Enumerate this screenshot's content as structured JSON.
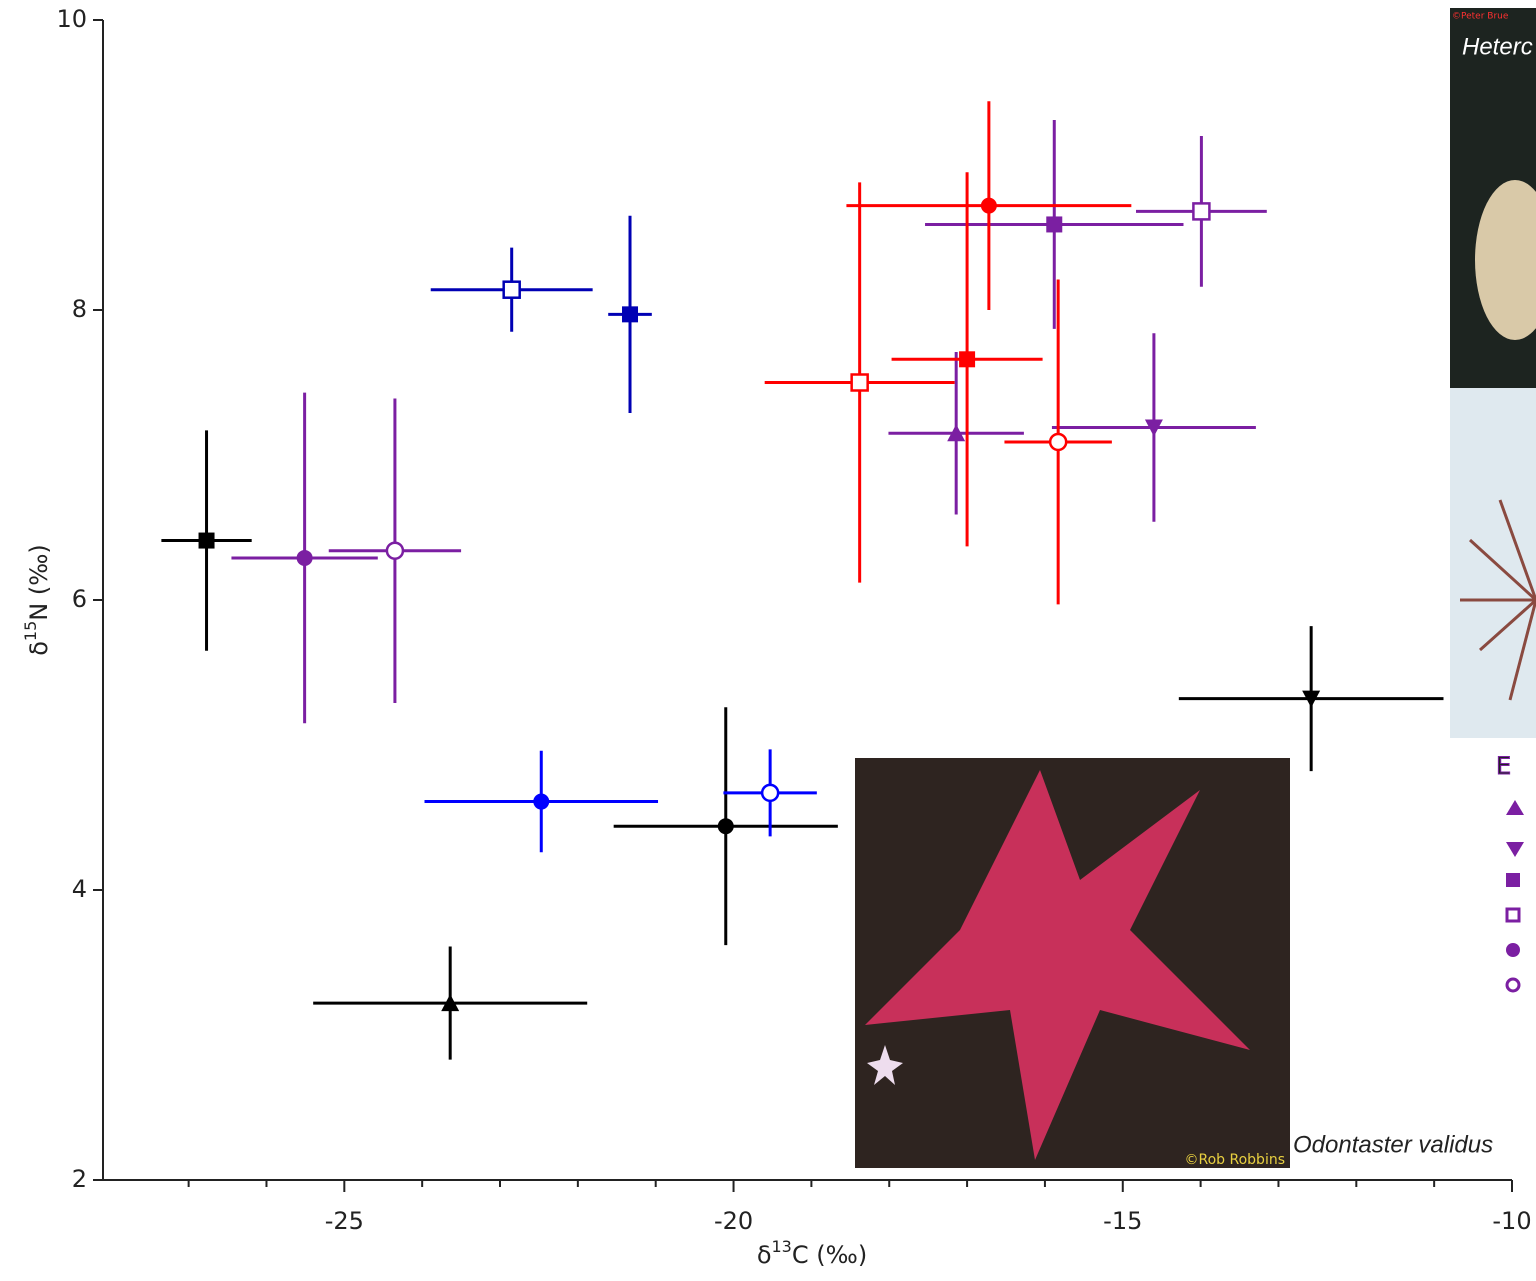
{
  "chart_data": {
    "type": "errorbar-scatter",
    "x_label": {
      "prefix": "δ",
      "sup": "13",
      "suffix": "C (‰)"
    },
    "y_label": {
      "prefix": "δ",
      "sup": "15",
      "suffix": "N (‰)"
    },
    "xlim": [
      -28.1,
      -10
    ],
    "xticks": [
      -25,
      -20,
      -15,
      -10
    ],
    "xminorticks": [
      -27,
      -26,
      -24,
      -23,
      -22,
      -21,
      -19,
      -18,
      -17,
      -16,
      -14,
      -13,
      -12,
      -11
    ],
    "ylim": [
      2,
      10
    ],
    "yticks": [
      2,
      4,
      6,
      8,
      10
    ],
    "series": [
      {
        "color": "#000000",
        "markers": [
          "square",
          "triangle-up",
          "circle",
          "triangle-down"
        ],
        "x": [
          -26.77,
          -23.64,
          -20.1,
          -12.58
        ],
        "y": [
          6.41,
          3.22,
          4.44,
          5.32
        ],
        "xerr": [
          0.58,
          1.76,
          1.44,
          1.7
        ],
        "yerr": [
          0.76,
          0.39,
          0.82,
          0.5
        ]
      },
      {
        "color": "#7b1fa2",
        "markers": [
          "circle",
          "circle-open",
          "square",
          "square-open",
          "triangle-up",
          "triangle-down"
        ],
        "x": [
          -25.51,
          -24.35,
          -15.88,
          -13.99,
          -17.14,
          -14.6
        ],
        "y": [
          6.29,
          6.34,
          8.59,
          8.68,
          7.15,
          7.19
        ],
        "xerr": [
          0.94,
          0.85,
          1.66,
          0.84,
          0.87,
          1.31
        ],
        "yerr": [
          1.14,
          1.05,
          0.72,
          0.52,
          0.56,
          0.65
        ]
      },
      {
        "color": "#ff0000",
        "markers": [
          "circle",
          "square",
          "square-open",
          "circle-open"
        ],
        "x": [
          -16.72,
          -17.0,
          -18.38,
          -15.83
        ],
        "y": [
          8.72,
          7.66,
          7.5,
          7.09
        ],
        "xerr": [
          1.83,
          0.97,
          1.22,
          0.69
        ],
        "yerr": [
          0.72,
          1.29,
          1.38,
          1.12
        ]
      },
      {
        "color": "#0000b4",
        "markers": [
          "square-open",
          "square"
        ],
        "x": [
          -22.85,
          -21.33
        ],
        "y": [
          8.14,
          7.97
        ],
        "xerr": [
          1.04,
          0.28
        ],
        "yerr": [
          0.29,
          0.68
        ]
      },
      {
        "color": "#0000ff",
        "markers": [
          "circle",
          "circle-open"
        ],
        "x": [
          -22.47,
          -19.53
        ],
        "y": [
          4.61,
          4.67
        ],
        "xerr": [
          1.5,
          0.6
        ],
        "yerr": [
          0.35,
          0.3
        ]
      }
    ],
    "photos": {
      "top_label": "Heterc",
      "top_credit": "©Peter Brue",
      "star_label": "Odontaster validus",
      "star_credit": "©Rob Robbins",
      "legend_fragment": "E"
    }
  }
}
